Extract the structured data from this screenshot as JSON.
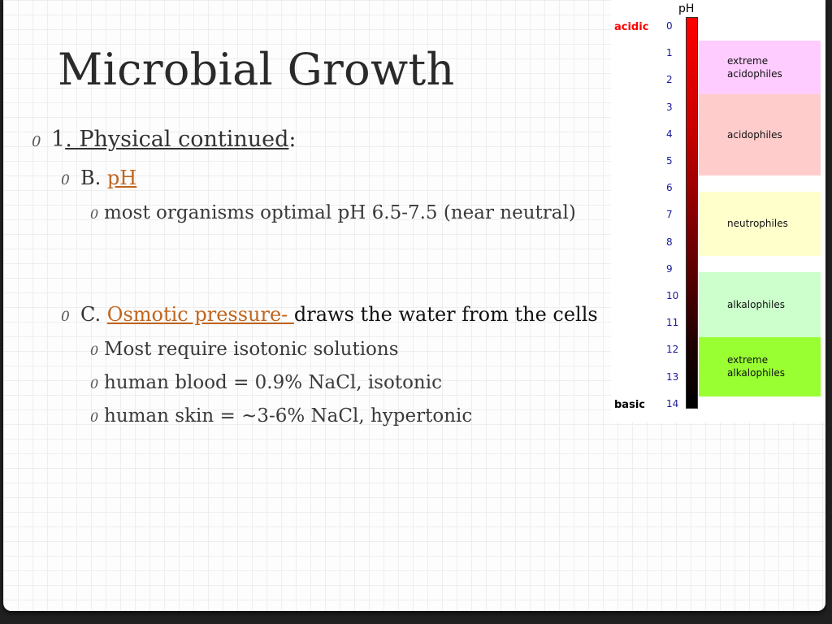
{
  "slide": {
    "title": "Microbial Growth",
    "bullet_glyph": "0",
    "items": {
      "physical": {
        "number": "1",
        "label": ". Physical continued",
        "suffix": ":"
      },
      "ph": {
        "prefix": "B. ",
        "link": "pH"
      },
      "ph_detail": "most organisms optimal pH 6.5-7.5 (near neutral)",
      "osmotic": {
        "prefix": "C. ",
        "link": "Osmotic pressure- ",
        "rest": "draws the water from the cells"
      },
      "osmotic_details": [
        "Most require isotonic solutions",
        "human blood = 0.9% NaCl, isotonic",
        "human skin = ~3-6% NaCl, hypertonic"
      ]
    }
  },
  "ph_chart": {
    "title": "pH",
    "top_label": "acidic",
    "bottom_label": "basic",
    "ticks": [
      "0",
      "1",
      "2",
      "3",
      "4",
      "5",
      "6",
      "7",
      "8",
      "9",
      "10",
      "11",
      "12",
      "13",
      "14"
    ],
    "bands": [
      {
        "label": "extreme\nacidophiles",
        "from": 0.5,
        "to": 2.5,
        "color": "#ffccff"
      },
      {
        "label": "acidophiles",
        "from": 2.5,
        "to": 5.5,
        "color": "#ffcccc"
      },
      {
        "label": "neutrophiles",
        "from": 6.1,
        "to": 8.5,
        "color": "#ffffcc"
      },
      {
        "label": "alkalophiles",
        "from": 9.1,
        "to": 11.5,
        "color": "#ccffcc"
      },
      {
        "label": "extreme\nalkalophiles",
        "from": 11.5,
        "to": 13.7,
        "color": "#99ff33"
      }
    ],
    "colors": {
      "acidic": "#ff0000",
      "basic": "#000000",
      "ticks": "#1a1a9a"
    }
  }
}
